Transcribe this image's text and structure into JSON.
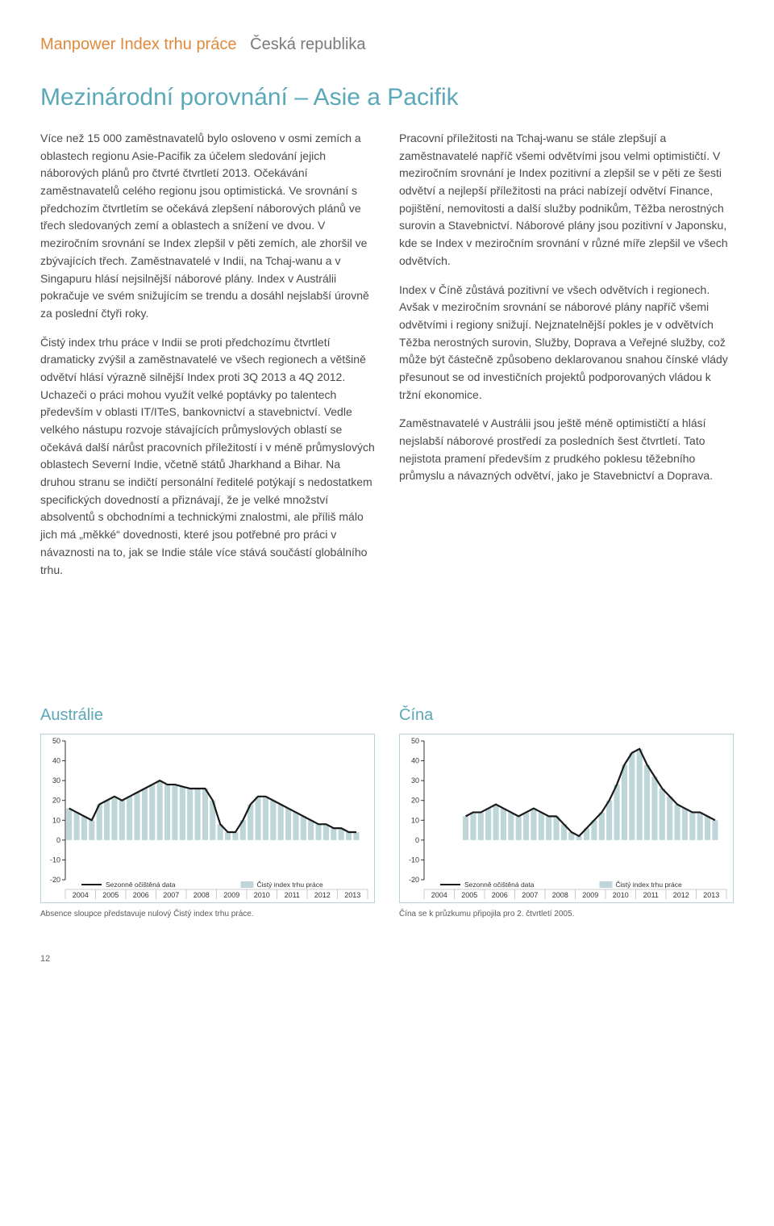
{
  "header": {
    "left": "Manpower Index trhu práce",
    "right": "Česká republika"
  },
  "title": "Mezinárodní porovnání – Asie a Pacifik",
  "left_paragraphs": [
    "Více než 15 000 zaměstnavatelů bylo osloveno v osmi zemích a oblastech regionu Asie-Pacifik za účelem sledování jejich náborových plánů pro čtvrté čtvrtletí 2013. Očekávání zaměstnavatelů celého regionu jsou optimistická. Ve srovnání s předchozím čtvrtletím se očekává zlepšení náborových plánů ve třech sledovaných zemí a oblastech a snížení ve dvou. V meziročním srovnání se Index zlepšil v pěti zemích, ale zhoršil ve zbývajících třech. Zaměstnavatelé v Indii, na Tchaj-wanu a v Singapuru hlásí nejsilnější náborové plány. Index v Austrálii pokračuje ve svém snižujícím se trendu a dosáhl nejslabší úrovně za poslední čtyři roky.",
    "Čistý index trhu práce v Indii se proti předchozímu čtvrtletí dramaticky zvýšil a zaměstnavatelé ve všech regionech a většině odvětví hlásí výrazně silnější Index proti 3Q 2013 a 4Q 2012. Uchazeči o práci mohou využít velké poptávky po talentech především v oblasti IT/ITeS, bankovnictví a stavebnictví. Vedle velkého nástupu rozvoje stávajících průmyslových oblastí se očekává další nárůst pracovních příležitostí i v méně průmyslových oblastech Severní Indie, včetně států Jharkhand a Bihar. Na druhou stranu se indičtí personální ředitelé potýkají s nedostatkem specifických dovedností a přiznávají, že je velké množství absolventů s obchodními a technickými znalostmi, ale příliš málo jich má „měkké“ dovednosti, které jsou potřebné pro práci v návaznosti na to, jak se Indie stále více stává součástí globálního trhu."
  ],
  "right_paragraphs": [
    "Pracovní příležitosti na Tchaj-wanu se stále zlepšují a zaměstnavatelé napříč všemi odvětvími jsou velmi optimističtí. V meziročním srovnání je Index pozitivní a zlepšil se v pěti ze šesti odvětví a nejlepší příležitosti na práci nabízejí odvětví Finance, pojištění, nemovitosti a další služby podnikům, Těžba nerostných surovin a Stavebnictví. Náborové plány jsou pozitivní v Japonsku, kde se Index v meziročním srovnání v různé míře zlepšil ve všech odvětvích.",
    "Index v Číně zůstává pozitivní ve všech odvětvích i regionech. Avšak v meziročním srovnání se náborové plány napříč všemi odvětvími i regiony snižují. Nejznatelnější pokles je v odvětvích Těžba nerostných surovin, Služby, Doprava a Veřejné služby, což může být částečně způsobeno deklarovanou snahou čínské vlády přesunout se od investičních projektů podporovaných vládou k tržní ekonomice.",
    "Zaměstnavatelé v Austrálii jsou ještě méně optimističtí a hlásí nejslabší náborové prostředí za posledních šest čtvrtletí. Tato nejistota pramení především z prudkého poklesu těžebního průmyslu a návazných odvětví, jako je Stavebnictví a Doprava."
  ],
  "chart_left": {
    "title": "Austrálie",
    "type": "bar_line",
    "ylim": [
      -20,
      50
    ],
    "ytick_step": 10,
    "years": [
      "2004",
      "2005",
      "2006",
      "2007",
      "2008",
      "2009",
      "2010",
      "2011",
      "2012",
      "2013"
    ],
    "legend_line": "Sezonně očištěná data",
    "legend_bar": "Čistý index trhu práce",
    "bars": [
      16,
      14,
      12,
      10,
      18,
      20,
      22,
      20,
      22,
      24,
      26,
      28,
      30,
      28,
      28,
      27,
      26,
      26,
      26,
      20,
      8,
      4,
      4,
      10,
      18,
      22,
      22,
      20,
      18,
      16,
      14,
      12,
      10,
      8,
      8,
      6,
      6,
      4,
      4
    ],
    "bar_color": "#bfd6d9",
    "line_color": "#1a1a1a",
    "bg_color": "#ffffff",
    "grid_color": "#b8d4d8",
    "axis_color": "#333333",
    "footnote": "Absence sloupce představuje nulový Čistý index trhu práce."
  },
  "chart_right": {
    "title": "Čína",
    "type": "bar_line",
    "ylim": [
      -20,
      50
    ],
    "ytick_step": 10,
    "years": [
      "2004",
      "2005",
      "2006",
      "2007",
      "2008",
      "2009",
      "2010",
      "2011",
      "2012",
      "2013"
    ],
    "legend_line": "Sezonně očištěná data",
    "legend_bar": "Čistý index trhu práce",
    "start_index": 5,
    "bars": [
      12,
      14,
      14,
      16,
      18,
      16,
      14,
      12,
      14,
      16,
      14,
      12,
      12,
      8,
      4,
      2,
      6,
      10,
      14,
      20,
      28,
      38,
      44,
      46,
      38,
      32,
      26,
      22,
      18,
      16,
      14,
      14,
      12,
      10
    ],
    "bar_color": "#bfd6d9",
    "line_color": "#1a1a1a",
    "bg_color": "#ffffff",
    "grid_color": "#b8d4d8",
    "axis_color": "#333333",
    "footnote": "Čína se k průzkumu připojila pro 2. čtvrtletí 2005."
  },
  "page_number": "12"
}
